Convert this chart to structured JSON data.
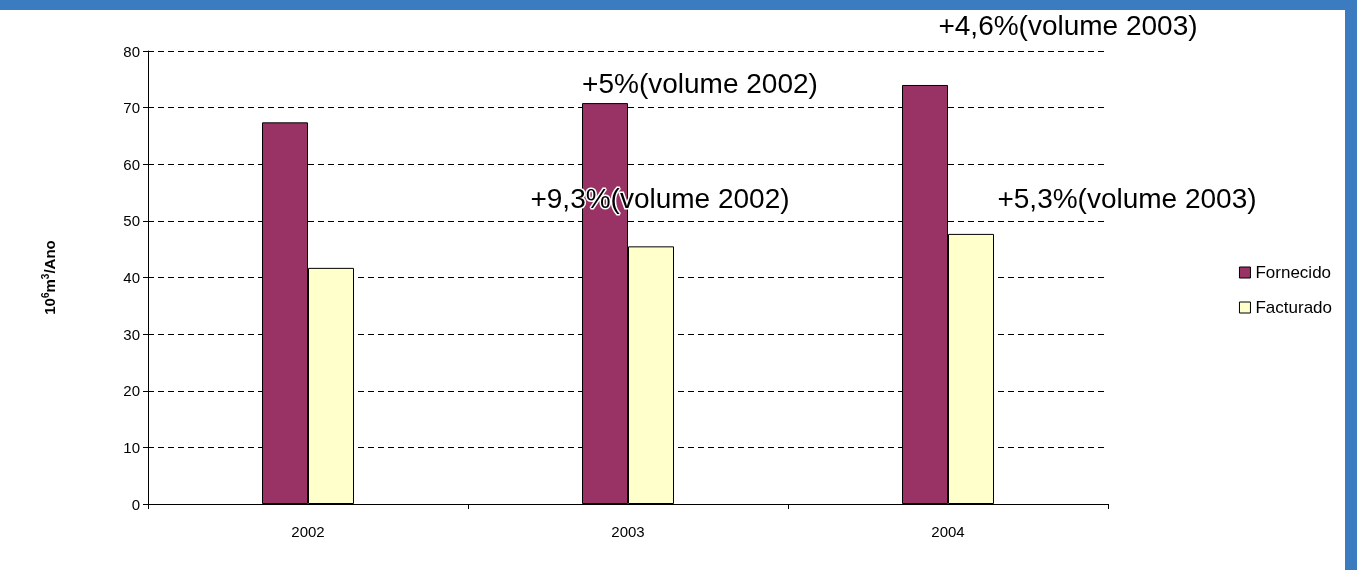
{
  "chart_data": {
    "type": "bar",
    "ylabel": "10$^{6}$m$^{3}$/Ano",
    "categories": [
      "2002",
      "2003",
      "2004"
    ],
    "series": [
      {
        "name": "Fornecido",
        "color": "#993366",
        "values": [
          67.4,
          70.8,
          74.0
        ]
      },
      {
        "name": "Facturado",
        "color": "#ffffcc",
        "values": [
          41.7,
          45.5,
          47.7
        ]
      }
    ],
    "ylim": [
      0,
      80
    ],
    "yticks": [
      0,
      10,
      20,
      30,
      40,
      50,
      60,
      70,
      80
    ],
    "grid": "y",
    "legend": "right",
    "annotations": [
      "+5%(volume 2002)",
      "+9,3%(volume 2002)",
      "+4,6%(volume 2003)",
      "+5,3%(volume 2003)"
    ]
  }
}
